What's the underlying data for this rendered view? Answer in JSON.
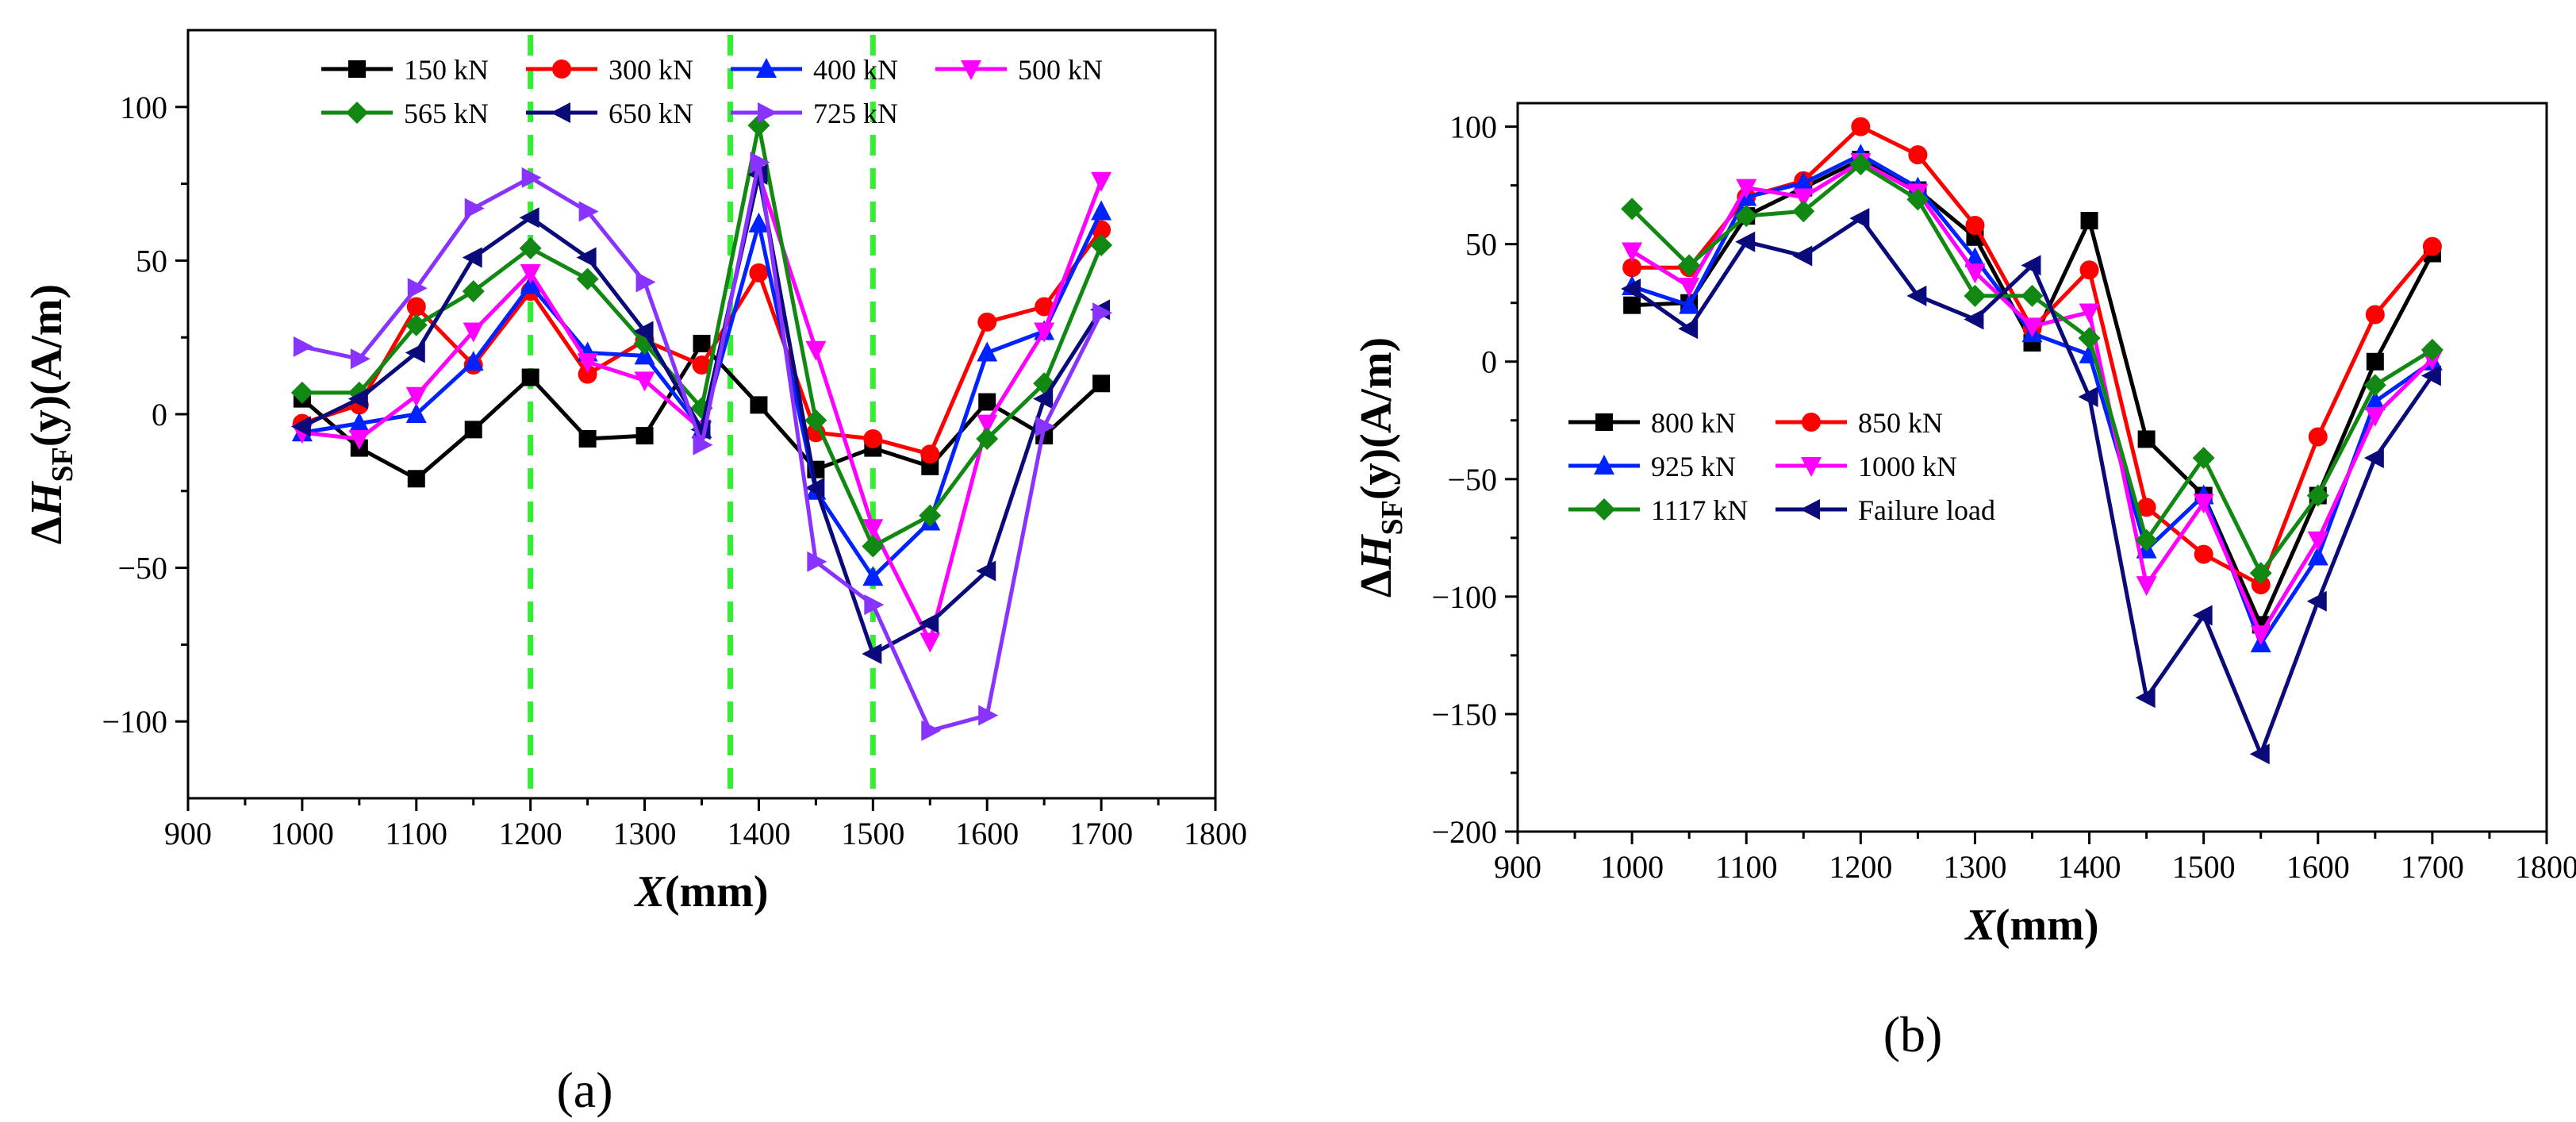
{
  "chart_data": [
    {
      "type": "line",
      "panel_label": "(a)",
      "xlabel": "X(mm)",
      "ylabel": "ΔHSF(y)(A/m)",
      "xlim": [
        900,
        1800
      ],
      "ylim": [
        -125,
        125
      ],
      "xticks": [
        900,
        1000,
        1100,
        1200,
        1300,
        1400,
        1500,
        1600,
        1700,
        1800
      ],
      "yticks": [
        100,
        50,
        0,
        -50,
        -100
      ],
      "ytick_labels": [
        "100",
        "50",
        "0",
        "−50",
        "−100"
      ],
      "legend_placement": "top",
      "reference_lines": {
        "color": "#33ee33",
        "style": "dashed",
        "x": [
          1200,
          1375,
          1500
        ]
      },
      "x": [
        1000,
        1050,
        1100,
        1150,
        1200,
        1250,
        1300,
        1350,
        1400,
        1450,
        1500,
        1550,
        1600,
        1650,
        1700
      ],
      "series": [
        {
          "name": "150 kN",
          "color": "#000000",
          "marker": "square",
          "values": [
            5,
            -11,
            -21,
            -5,
            12,
            -8,
            -7,
            23,
            3,
            -18,
            -11,
            -17,
            4,
            -7,
            10
          ]
        },
        {
          "name": "300 kN",
          "color": "#ff0000",
          "marker": "circle",
          "values": [
            -3,
            3,
            35,
            16,
            40,
            13,
            24,
            16,
            46,
            -6,
            -8,
            -13,
            30,
            35,
            60
          ]
        },
        {
          "name": "400 kN",
          "color": "#0022ff",
          "marker": "triangle-up",
          "values": [
            -6,
            -3,
            0,
            17,
            42,
            20,
            19,
            -5,
            62,
            -25,
            -53,
            -35,
            20,
            27,
            66
          ]
        },
        {
          "name": "500 kN",
          "color": "#ff00ff",
          "marker": "triangle-down",
          "values": [
            -6,
            -8,
            6,
            27,
            46,
            17,
            11,
            -5,
            78,
            21,
            -37,
            -74,
            -3,
            27,
            76
          ]
        },
        {
          "name": "565 kN",
          "color": "#118811",
          "marker": "diamond",
          "values": [
            7,
            7,
            29,
            40,
            54,
            44,
            23,
            2,
            94,
            -2,
            -43,
            -33,
            -8,
            10,
            55
          ]
        },
        {
          "name": "650 kN",
          "color": "#0a0a7a",
          "marker": "triangle-left",
          "values": [
            -4,
            5,
            20,
            51,
            64,
            51,
            27,
            -5,
            78,
            -24,
            -78,
            -68,
            -51,
            5,
            34
          ]
        },
        {
          "name": "725 kN",
          "color": "#8833ff",
          "marker": "triangle-right",
          "values": [
            22,
            18,
            41,
            67,
            77,
            66,
            43,
            -10,
            82,
            -48,
            -62,
            -103,
            -98,
            -4,
            33
          ]
        }
      ]
    },
    {
      "type": "line",
      "panel_label": "(b)",
      "xlabel": "X(mm)",
      "ylabel": "ΔHSF(y)(A/m)",
      "xlim": [
        900,
        1800
      ],
      "ylim": [
        -200,
        110
      ],
      "xticks": [
        900,
        1000,
        1100,
        1200,
        1300,
        1400,
        1500,
        1600,
        1700,
        1800
      ],
      "yticks": [
        100,
        50,
        0,
        -50,
        -100,
        -150,
        -200
      ],
      "ytick_labels": [
        "100",
        "50",
        "0",
        "−50",
        "−100",
        "−150",
        "−200"
      ],
      "legend_placement": "lower-left",
      "x": [
        1000,
        1050,
        1100,
        1150,
        1200,
        1250,
        1300,
        1350,
        1400,
        1450,
        1500,
        1550,
        1600,
        1650,
        1700
      ],
      "series": [
        {
          "name": "800 kN",
          "color": "#000000",
          "marker": "square",
          "values": [
            24,
            25,
            62,
            74,
            86,
            73,
            53,
            8,
            60,
            -33,
            -57,
            -112,
            -57,
            0,
            46
          ]
        },
        {
          "name": "850 kN",
          "color": "#ff0000",
          "marker": "circle",
          "values": [
            40,
            40,
            70,
            77,
            100,
            88,
            58,
            14,
            39,
            -62,
            -82,
            -95,
            -32,
            20,
            49
          ]
        },
        {
          "name": "925 kN",
          "color": "#0022ff",
          "marker": "triangle-up",
          "values": [
            32,
            24,
            70,
            76,
            88,
            74,
            44,
            12,
            3,
            -80,
            -57,
            -120,
            -83,
            -17,
            0
          ]
        },
        {
          "name": "1000 kN",
          "color": "#ff00ff",
          "marker": "triangle-down",
          "values": [
            47,
            32,
            74,
            70,
            85,
            72,
            38,
            15,
            21,
            -95,
            -60,
            -116,
            -76,
            -23,
            1
          ]
        },
        {
          "name": "1117 kN",
          "color": "#118811",
          "marker": "diamond",
          "values": [
            65,
            41,
            62,
            64,
            84,
            69,
            28,
            28,
            10,
            -76,
            -41,
            -90,
            -57,
            -10,
            5
          ]
        },
        {
          "name": "Failure load",
          "color": "#0a0a7a",
          "marker": "triangle-left",
          "values": [
            31,
            14,
            51,
            45,
            61,
            28,
            18,
            41,
            -15,
            -143,
            -108,
            -167,
            -102,
            -41,
            -6
          ]
        }
      ]
    }
  ]
}
